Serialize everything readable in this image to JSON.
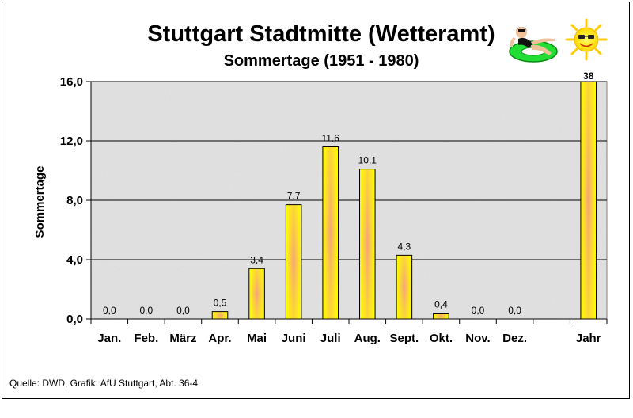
{
  "chart_data": {
    "type": "bar",
    "title": "Stuttgart Stadtmitte (Wetteramt)",
    "subtitle": "Sommertage (1951 - 1980)",
    "ylabel": "Sommertage",
    "xlabel": "",
    "ylim": [
      0,
      16
    ],
    "yticks": [
      "0,0",
      "4,0",
      "8,0",
      "12,0",
      "16,0"
    ],
    "ytick_values": [
      0,
      4,
      8,
      12,
      16
    ],
    "grid": true,
    "categories": [
      "Jan.",
      "Feb.",
      "März",
      "Apr.",
      "Mai",
      "Juni",
      "Juli",
      "Aug.",
      "Sept.",
      "Okt.",
      "Nov.",
      "Dez.",
      "",
      "Jahr"
    ],
    "values": [
      0,
      0,
      0,
      0.5,
      3.4,
      7.7,
      11.6,
      10.1,
      4.3,
      0.4,
      0,
      0,
      null,
      38
    ],
    "value_labels": [
      "0,0",
      "0,0",
      "0,0",
      "0,5",
      "3,4",
      "7,7",
      "11,6",
      "10,1",
      "4,3",
      "0,4",
      "0,0",
      "0,0",
      "",
      "38"
    ],
    "clipped_at_ylim": [
      "Jahr"
    ],
    "colors": {
      "bar_edge": "#ffff00",
      "bar_center": "#f4a07a",
      "plot_bg": "#e4e4e4",
      "outline": "#000000"
    },
    "source": "Quelle: DWD, Grafik: AfU Stuttgart, Abt. 36-4",
    "decorations": [
      "sunbather-icon",
      "sun-icon"
    ]
  }
}
